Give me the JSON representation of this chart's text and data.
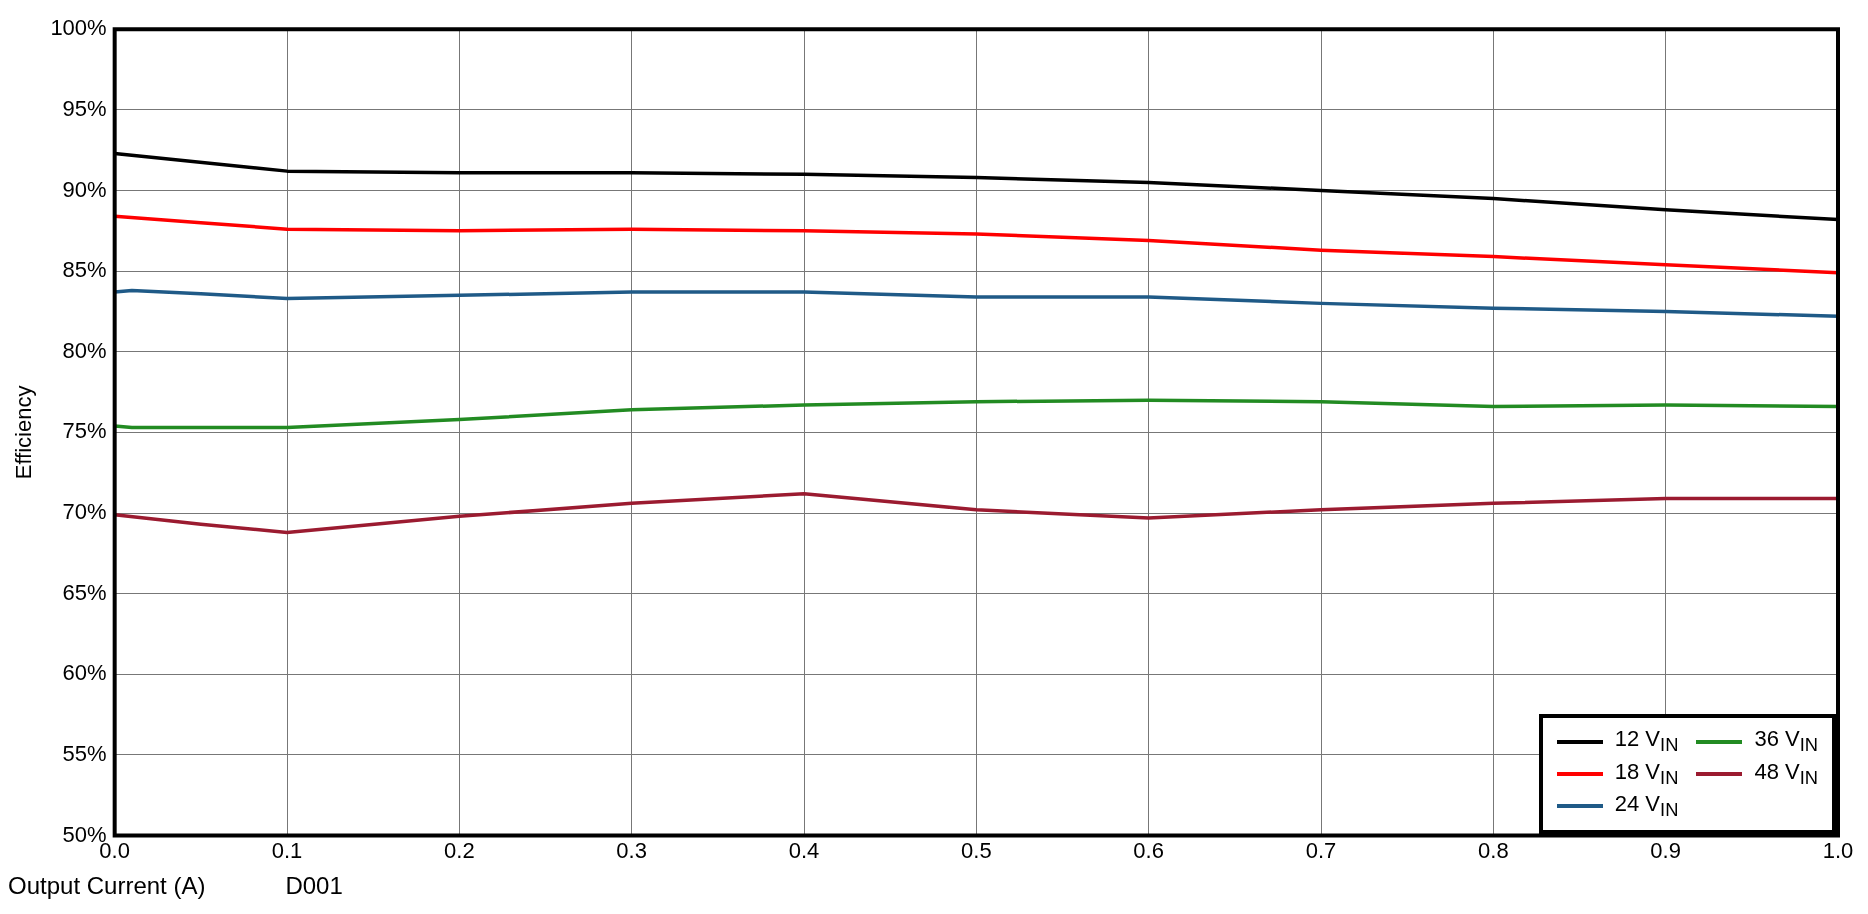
{
  "chart_data": {
    "type": "line",
    "xlabel": "Output Current (A)",
    "ylabel": "Efficiency",
    "annotations": [
      "D001"
    ],
    "xlim": [
      0,
      1
    ],
    "ylim": [
      50,
      100
    ],
    "xticks": [
      {
        "value": 0,
        "label": "0.0"
      },
      {
        "value": 0.1,
        "label": "0.1"
      },
      {
        "value": 0.2,
        "label": "0.2"
      },
      {
        "value": 0.3,
        "label": "0.3"
      },
      {
        "value": 0.4,
        "label": "0.4"
      },
      {
        "value": 0.5,
        "label": "0.5"
      },
      {
        "value": 0.6,
        "label": "0.6"
      },
      {
        "value": 0.7,
        "label": "0.7"
      },
      {
        "value": 0.8,
        "label": "0.8"
      },
      {
        "value": 0.9,
        "label": "0.9"
      },
      {
        "value": 1,
        "label": "1.0"
      }
    ],
    "yticks": [
      {
        "value": 50,
        "label": "50%"
      },
      {
        "value": 55,
        "label": "55%"
      },
      {
        "value": 60,
        "label": "60%"
      },
      {
        "value": 65,
        "label": "65%"
      },
      {
        "value": 70,
        "label": "70%"
      },
      {
        "value": 75,
        "label": "75%"
      },
      {
        "value": 80,
        "label": "80%"
      },
      {
        "value": 85,
        "label": "85%"
      },
      {
        "value": 90,
        "label": "90%"
      },
      {
        "value": 95,
        "label": "95%"
      },
      {
        "value": 100,
        "label": "100%"
      }
    ],
    "grid": true,
    "legend": "bottom right",
    "marker": "none",
    "line_style": "solid",
    "series": [
      {
        "name": "12 V$_{IN}$",
        "color": "#000000",
        "x": [
          0,
          0.1,
          0.2,
          0.3,
          0.4,
          0.5,
          0.6,
          0.7,
          0.8,
          0.9,
          1
        ],
        "values": [
          92.3,
          91.2,
          91.1,
          91.1,
          91.0,
          90.8,
          90.5,
          90.0,
          89.5,
          88.8,
          88.2
        ]
      },
      {
        "name": "18 V$_{IN}$",
        "color": "#ff0000",
        "x": [
          0,
          0.05,
          0.1,
          0.2,
          0.3,
          0.4,
          0.5,
          0.6,
          0.7,
          0.8,
          0.9,
          1
        ],
        "values": [
          88.4,
          88.0,
          87.6,
          87.5,
          87.6,
          87.5,
          87.3,
          86.9,
          86.3,
          85.9,
          85.4,
          84.9
        ]
      },
      {
        "name": "24 V$_{IN}$",
        "color": "#1f5a87",
        "x": [
          0,
          0.01,
          0.05,
          0.1,
          0.2,
          0.3,
          0.4,
          0.5,
          0.6,
          0.7,
          0.8,
          0.9,
          1
        ],
        "values": [
          83.7,
          83.8,
          83.6,
          83.3,
          83.5,
          83.7,
          83.7,
          83.4,
          83.4,
          83.0,
          82.7,
          82.5,
          82.2
        ]
      },
      {
        "name": "36 V$_{IN}$",
        "color": "#228b22",
        "x": [
          0,
          0.01,
          0.05,
          0.1,
          0.2,
          0.3,
          0.4,
          0.5,
          0.6,
          0.7,
          0.8,
          0.9,
          1
        ],
        "values": [
          75.4,
          75.3,
          75.3,
          75.3,
          75.8,
          76.4,
          76.7,
          76.9,
          77.0,
          76.9,
          76.6,
          76.7,
          76.6
        ]
      },
      {
        "name": "48 V$_{IN}$",
        "color": "#9b1b30",
        "x": [
          0,
          0.05,
          0.1,
          0.2,
          0.3,
          0.4,
          0.5,
          0.6,
          0.7,
          0.8,
          0.9,
          1
        ],
        "values": [
          69.9,
          69.3,
          68.8,
          69.8,
          70.6,
          71.2,
          70.2,
          69.7,
          70.2,
          70.6,
          70.9,
          70.9
        ]
      }
    ]
  }
}
